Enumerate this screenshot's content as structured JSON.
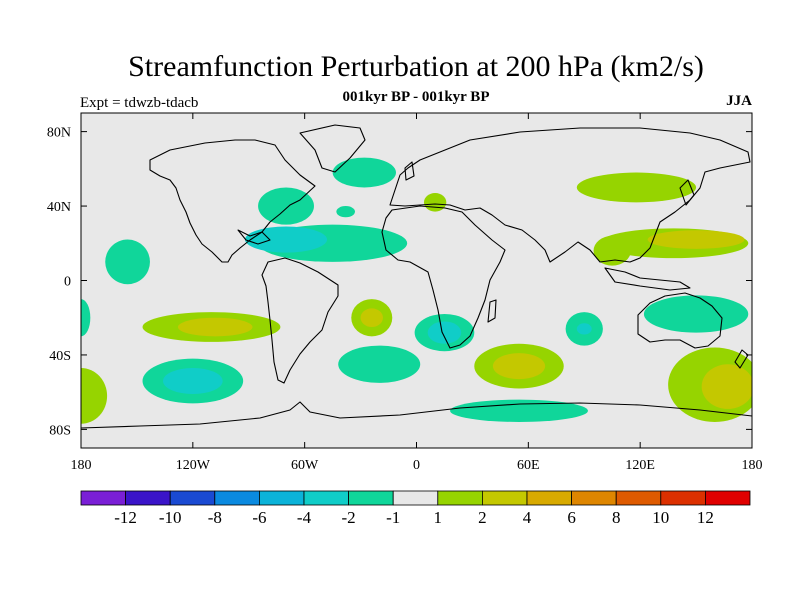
{
  "header": {
    "title": "Streamfunction Perturbation at 200 hPa (km2/s)",
    "subtitle": "001kyr BP - 001kyr BP",
    "experiment": "Expt = tdwzb-tdacb",
    "season": "JJA"
  },
  "axes": {
    "lat_labels": [
      "80N",
      "40N",
      "0",
      "40S",
      "80S"
    ],
    "lat_values": [
      80,
      40,
      0,
      -40,
      -80
    ],
    "lon_labels": [
      "180",
      "120W",
      "60W",
      "0",
      "60E",
      "120E",
      "180"
    ],
    "lon_values": [
      -180,
      -120,
      -60,
      0,
      60,
      120,
      180
    ],
    "lon_range": [
      -180,
      180
    ],
    "lat_range": [
      -90,
      90
    ]
  },
  "colorbar": {
    "colors": [
      "#7a1fd6",
      "#3a14c9",
      "#1a4ad2",
      "#0a8ae0",
      "#0bb3d9",
      "#10cdc8",
      "#10d69a",
      "#e8e8e8",
      "#96d400",
      "#c4c800",
      "#d8aa00",
      "#de8600",
      "#de5a00",
      "#dc3000",
      "#e00000"
    ],
    "labels": [
      "-12",
      "-10",
      "-8",
      "-6",
      "-4",
      "-2",
      "-1",
      "1",
      "2",
      "4",
      "6",
      "8",
      "10",
      "12"
    ]
  },
  "regions": [
    {
      "name": "north-atlantic-low",
      "level": 6,
      "lon": -45,
      "lat": 20,
      "rx": 40,
      "ry": 10
    },
    {
      "name": "caribbean-low-core",
      "level": 5,
      "lon": -70,
      "lat": 22,
      "rx": 22,
      "ry": 7
    },
    {
      "name": "north-america-low",
      "level": 6,
      "lon": -70,
      "lat": 40,
      "rx": 15,
      "ry": 10
    },
    {
      "name": "north-atlantic-north-low",
      "level": 6,
      "lon": -28,
      "lat": 58,
      "rx": 17,
      "ry": 8
    },
    {
      "name": "mid-atlantic-small-low",
      "level": 6,
      "lon": -38,
      "lat": 37,
      "rx": 5,
      "ry": 3
    },
    {
      "name": "pacific-west-low",
      "level": 6,
      "lon": -155,
      "lat": 10,
      "rx": 12,
      "ry": 12
    },
    {
      "name": "pacific-south-high",
      "level": 8,
      "lon": -110,
      "lat": -25,
      "rx": 37,
      "ry": 8
    },
    {
      "name": "pacific-south-high-core",
      "level": 9,
      "lon": -108,
      "lat": -25,
      "rx": 20,
      "ry": 5
    },
    {
      "name": "south-pacific-low",
      "level": 6,
      "lon": -120,
      "lat": -54,
      "rx": 27,
      "ry": 12
    },
    {
      "name": "south-pacific-low-core",
      "level": 5,
      "lon": -120,
      "lat": -54,
      "rx": 16,
      "ry": 7
    },
    {
      "name": "far-west-south-high",
      "level": 8,
      "lon": -180,
      "lat": -62,
      "rx": 14,
      "ry": 15
    },
    {
      "name": "far-west-low",
      "level": 6,
      "lon": -180,
      "lat": -20,
      "rx": 5,
      "ry": 10
    },
    {
      "name": "south-atlantic-high",
      "level": 8,
      "lon": -24,
      "lat": -20,
      "rx": 11,
      "ry": 10
    },
    {
      "name": "south-atlantic-high-core",
      "level": 9,
      "lon": -24,
      "lat": -20,
      "rx": 6,
      "ry": 5
    },
    {
      "name": "south-atlantic-low",
      "level": 6,
      "lon": -20,
      "lat": -45,
      "rx": 22,
      "ry": 10
    },
    {
      "name": "south-africa-low",
      "level": 6,
      "lon": 15,
      "lat": -28,
      "rx": 16,
      "ry": 10
    },
    {
      "name": "south-africa-low-core",
      "level": 5,
      "lon": 15,
      "lat": -28,
      "rx": 9,
      "ry": 6
    },
    {
      "name": "indian-ocean-high",
      "level": 8,
      "lon": 55,
      "lat": -46,
      "rx": 24,
      "ry": 12
    },
    {
      "name": "indian-ocean-high-core",
      "level": 9,
      "lon": 55,
      "lat": -46,
      "rx": 14,
      "ry": 7
    },
    {
      "name": "indian-ocean-low",
      "level": 6,
      "lon": 90,
      "lat": -26,
      "rx": 10,
      "ry": 9
    },
    {
      "name": "indian-ocean-low-core",
      "level": 5,
      "lon": 90,
      "lat": -26,
      "rx": 4,
      "ry": 3
    },
    {
      "name": "southern-ocean-low",
      "level": 6,
      "lon": 55,
      "lat": -70,
      "rx": 37,
      "ry": 6
    },
    {
      "name": "europe-high",
      "level": 8,
      "lon": 10,
      "lat": 42,
      "rx": 6,
      "ry": 5
    },
    {
      "name": "east-asia-high",
      "level": 8,
      "lon": 118,
      "lat": 50,
      "rx": 32,
      "ry": 8
    },
    {
      "name": "west-pacific-high",
      "level": 8,
      "lon": 138,
      "lat": 20,
      "rx": 40,
      "ry": 8
    },
    {
      "name": "west-pacific-high-core",
      "level": 9,
      "lon": 150,
      "lat": 22,
      "rx": 26,
      "ry": 5
    },
    {
      "name": "south-asia-high",
      "level": 8,
      "lon": 105,
      "lat": 16,
      "rx": 10,
      "ry": 8
    },
    {
      "name": "australia-low",
      "level": 6,
      "lon": 150,
      "lat": -18,
      "rx": 28,
      "ry": 10
    },
    {
      "name": "southwest-pacific-high",
      "level": 8,
      "lon": 160,
      "lat": -56,
      "rx": 25,
      "ry": 20
    },
    {
      "name": "southwest-pacific-high-core",
      "level": 9,
      "lon": 167,
      "lat": -57,
      "rx": 14,
      "ry": 12
    }
  ]
}
